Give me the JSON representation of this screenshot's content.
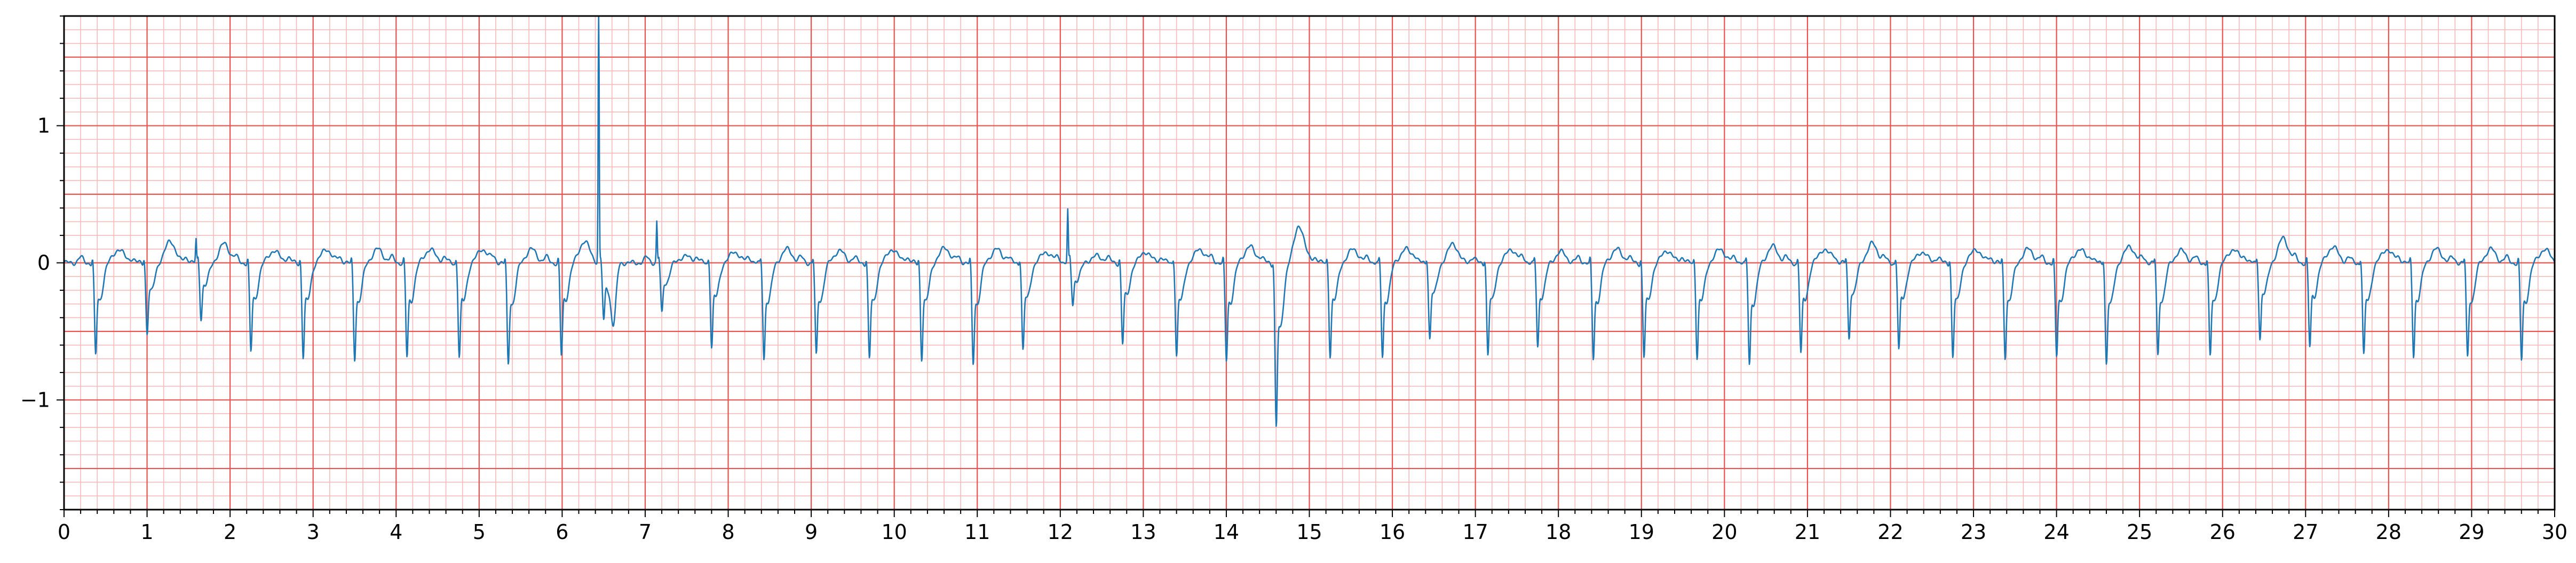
{
  "chart_data": {
    "type": "line",
    "title": "",
    "xlabel": "",
    "ylabel": "",
    "xlim": [
      0,
      30
    ],
    "ylim": [
      -1.8,
      1.8
    ],
    "x_ticks": [
      0,
      1,
      2,
      3,
      4,
      5,
      6,
      7,
      8,
      9,
      10,
      11,
      12,
      13,
      14,
      15,
      16,
      17,
      18,
      19,
      20,
      21,
      22,
      23,
      24,
      25,
      26,
      27,
      28,
      29,
      30
    ],
    "x_tick_labels": [
      "0",
      "1",
      "2",
      "3",
      "4",
      "5",
      "6",
      "7",
      "8",
      "9",
      "10",
      "11",
      "12",
      "13",
      "14",
      "15",
      "16",
      "17",
      "18",
      "19",
      "20",
      "21",
      "22",
      "23",
      "24",
      "25",
      "26",
      "27",
      "28",
      "29",
      "30"
    ],
    "y_ticks": [
      -1,
      0,
      1
    ],
    "y_tick_labels": [
      "−1",
      "0",
      "1"
    ],
    "grid": true,
    "grid_major_color": "#e8534f",
    "grid_minor_color": "#f7b9b9",
    "line_color": "#1f77b4",
    "series": [
      {
        "beats": [
          {
            "t": 0.38,
            "q": -0.55,
            "p": 0.04,
            "tw": 0.1
          },
          {
            "t": 1.0,
            "q": -0.42,
            "p": 0.03,
            "tw": 0.16
          },
          {
            "t": 1.65,
            "q": -0.33,
            "p": 0.04,
            "tw": 0.14,
            "spike": 0.17
          },
          {
            "t": 2.25,
            "q": -0.53,
            "p": 0.04,
            "tw": 0.09
          },
          {
            "t": 2.88,
            "q": -0.56,
            "p": 0.04,
            "tw": 0.1
          },
          {
            "t": 3.5,
            "q": -0.57,
            "p": 0.04,
            "tw": 0.1
          },
          {
            "t": 4.13,
            "q": -0.56,
            "p": 0.04,
            "tw": 0.1
          },
          {
            "t": 4.76,
            "q": -0.56,
            "p": 0.04,
            "tw": 0.1
          },
          {
            "t": 5.35,
            "q": -0.6,
            "p": 0.04,
            "tw": 0.1
          },
          {
            "t": 5.99,
            "q": -0.55,
            "p": 0.04,
            "tw": 0.16
          },
          {
            "t": 6.5,
            "q": -0.35,
            "p": 0.0,
            "tw": 0.0,
            "spike": 2.0,
            "dip": -0.76
          },
          {
            "t": 7.2,
            "q": -0.3,
            "p": 0.04,
            "tw": 0.05,
            "spike": 0.3
          },
          {
            "t": 7.8,
            "q": -0.5,
            "p": 0.04,
            "tw": 0.08
          },
          {
            "t": 8.43,
            "q": -0.57,
            "p": 0.04,
            "tw": 0.1
          },
          {
            "t": 9.06,
            "q": -0.55,
            "p": 0.04,
            "tw": 0.09
          },
          {
            "t": 9.7,
            "q": -0.57,
            "p": 0.04,
            "tw": 0.1
          },
          {
            "t": 10.33,
            "q": -0.57,
            "p": 0.04,
            "tw": 0.11
          },
          {
            "t": 10.95,
            "q": -0.6,
            "p": 0.04,
            "tw": 0.1
          },
          {
            "t": 11.55,
            "q": -0.52,
            "p": 0.04,
            "tw": 0.08
          },
          {
            "t": 12.15,
            "q": -0.25,
            "p": 0.04,
            "tw": 0.05,
            "spike": 0.38
          },
          {
            "t": 12.75,
            "q": -0.48,
            "p": 0.04,
            "tw": 0.08
          },
          {
            "t": 13.4,
            "q": -0.55,
            "p": 0.04,
            "tw": 0.1
          },
          {
            "t": 14.0,
            "q": -0.58,
            "p": 0.04,
            "tw": 0.12
          },
          {
            "t": 14.6,
            "q": -0.97,
            "p": 0.04,
            "tw": 0.27
          },
          {
            "t": 15.25,
            "q": -0.55,
            "p": 0.04,
            "tw": 0.1
          },
          {
            "t": 15.88,
            "q": -0.56,
            "p": 0.04,
            "tw": 0.1
          },
          {
            "t": 16.45,
            "q": -0.45,
            "p": 0.04,
            "tw": 0.14
          },
          {
            "t": 17.15,
            "q": -0.55,
            "p": 0.04,
            "tw": 0.1
          },
          {
            "t": 17.75,
            "q": -0.5,
            "p": 0.04,
            "tw": 0.08
          },
          {
            "t": 18.42,
            "q": -0.57,
            "p": 0.04,
            "tw": 0.1
          },
          {
            "t": 19.03,
            "q": -0.56,
            "p": 0.04,
            "tw": 0.09
          },
          {
            "t": 19.67,
            "q": -0.56,
            "p": 0.04,
            "tw": 0.1
          },
          {
            "t": 20.3,
            "q": -0.6,
            "p": 0.04,
            "tw": 0.12
          },
          {
            "t": 20.92,
            "q": -0.54,
            "p": 0.04,
            "tw": 0.1
          },
          {
            "t": 21.5,
            "q": -0.45,
            "p": 0.04,
            "tw": 0.14
          },
          {
            "t": 22.1,
            "q": -0.52,
            "p": 0.04,
            "tw": 0.08
          },
          {
            "t": 22.75,
            "q": -0.56,
            "p": 0.04,
            "tw": 0.1
          },
          {
            "t": 23.38,
            "q": -0.56,
            "p": 0.04,
            "tw": 0.1
          },
          {
            "t": 24.0,
            "q": -0.56,
            "p": 0.04,
            "tw": 0.1
          },
          {
            "t": 24.6,
            "q": -0.6,
            "p": 0.04,
            "tw": 0.12
          },
          {
            "t": 25.22,
            "q": -0.55,
            "p": 0.04,
            "tw": 0.09
          },
          {
            "t": 25.85,
            "q": -0.56,
            "p": 0.04,
            "tw": 0.1
          },
          {
            "t": 26.45,
            "q": -0.45,
            "p": 0.04,
            "tw": 0.18
          },
          {
            "t": 27.05,
            "q": -0.5,
            "p": 0.04,
            "tw": 0.12
          },
          {
            "t": 27.7,
            "q": -0.55,
            "p": 0.04,
            "tw": 0.1
          },
          {
            "t": 28.3,
            "q": -0.55,
            "p": 0.04,
            "tw": 0.1
          },
          {
            "t": 28.95,
            "q": -0.56,
            "p": 0.04,
            "tw": 0.1
          },
          {
            "t": 29.6,
            "q": -0.58,
            "p": 0.04,
            "tw": 0.1
          }
        ]
      }
    ]
  }
}
